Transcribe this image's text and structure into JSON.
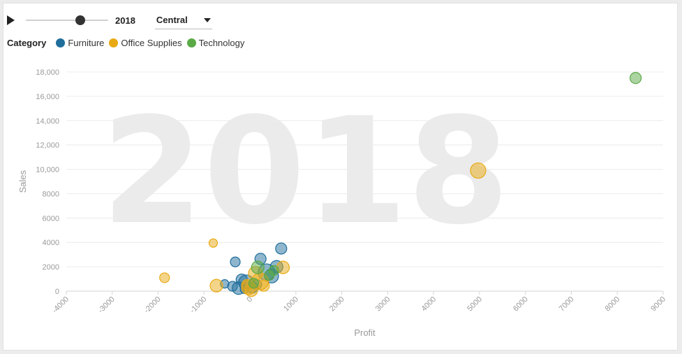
{
  "controls": {
    "year": "2018",
    "year_min": 2015,
    "year_max": 2018,
    "region": "Central"
  },
  "legend": {
    "title": "Category",
    "items": [
      {
        "label": "Furniture",
        "color": "#1f6e9c"
      },
      {
        "label": "Office Supplies",
        "color": "#e8aa14"
      },
      {
        "label": "Technology",
        "color": "#5aaa46"
      }
    ]
  },
  "chart_data": {
    "type": "scatter",
    "watermark": "2018",
    "xlabel": "Profit",
    "ylabel": "Sales",
    "xlim": [
      -4000,
      9000
    ],
    "ylim": [
      0,
      18000
    ],
    "x_ticks": [
      "-4000",
      "-3000",
      "-2000",
      "-1000",
      "0",
      "1000",
      "2000",
      "3000",
      "4000",
      "5000",
      "6000",
      "7000",
      "8000",
      "9000"
    ],
    "y_ticks": [
      "0",
      "2000",
      "4000",
      "6000",
      "8000",
      "10,000",
      "12,000",
      "14,000",
      "16,000",
      "18,000"
    ],
    "series": [
      {
        "name": "Furniture",
        "color": "#1f6e9c",
        "points": [
          {
            "x": 680,
            "y": 3500,
            "r": 8
          },
          {
            "x": 230,
            "y": 2650,
            "r": 8
          },
          {
            "x": -320,
            "y": 2400,
            "r": 7
          },
          {
            "x": 580,
            "y": 2000,
            "r": 9
          },
          {
            "x": 360,
            "y": 1550,
            "r": 12
          },
          {
            "x": 470,
            "y": 1250,
            "r": 10
          },
          {
            "x": -180,
            "y": 950,
            "r": 8
          },
          {
            "x": -80,
            "y": 700,
            "r": 11
          },
          {
            "x": -550,
            "y": 600,
            "r": 6
          },
          {
            "x": -380,
            "y": 400,
            "r": 7
          },
          {
            "x": 150,
            "y": 550,
            "r": 7
          },
          {
            "x": -250,
            "y": 250,
            "r": 9
          },
          {
            "x": 50,
            "y": 300,
            "r": 8
          },
          {
            "x": -120,
            "y": 150,
            "r": 6
          }
        ]
      },
      {
        "name": "Office Supplies",
        "color": "#e8aa14",
        "points": [
          {
            "x": 4970,
            "y": 9900,
            "r": 11
          },
          {
            "x": -800,
            "y": 3950,
            "r": 6
          },
          {
            "x": 720,
            "y": 1950,
            "r": 9
          },
          {
            "x": -1860,
            "y": 1100,
            "r": 7
          },
          {
            "x": -730,
            "y": 450,
            "r": 9
          },
          {
            "x": 120,
            "y": 1450,
            "r": 10
          },
          {
            "x": 220,
            "y": 800,
            "r": 12
          },
          {
            "x": -30,
            "y": 300,
            "r": 10
          },
          {
            "x": 30,
            "y": 80,
            "r": 9
          },
          {
            "x": -60,
            "y": 500,
            "r": 8
          },
          {
            "x": 300,
            "y": 450,
            "r": 8
          }
        ]
      },
      {
        "name": "Technology",
        "color": "#5aaa46",
        "points": [
          {
            "x": 8400,
            "y": 17500,
            "r": 8
          },
          {
            "x": 170,
            "y": 1950,
            "r": 9
          },
          {
            "x": 420,
            "y": 1300,
            "r": 7
          },
          {
            "x": 520,
            "y": 1700,
            "r": 7
          },
          {
            "x": 80,
            "y": 650,
            "r": 7
          }
        ]
      }
    ]
  }
}
